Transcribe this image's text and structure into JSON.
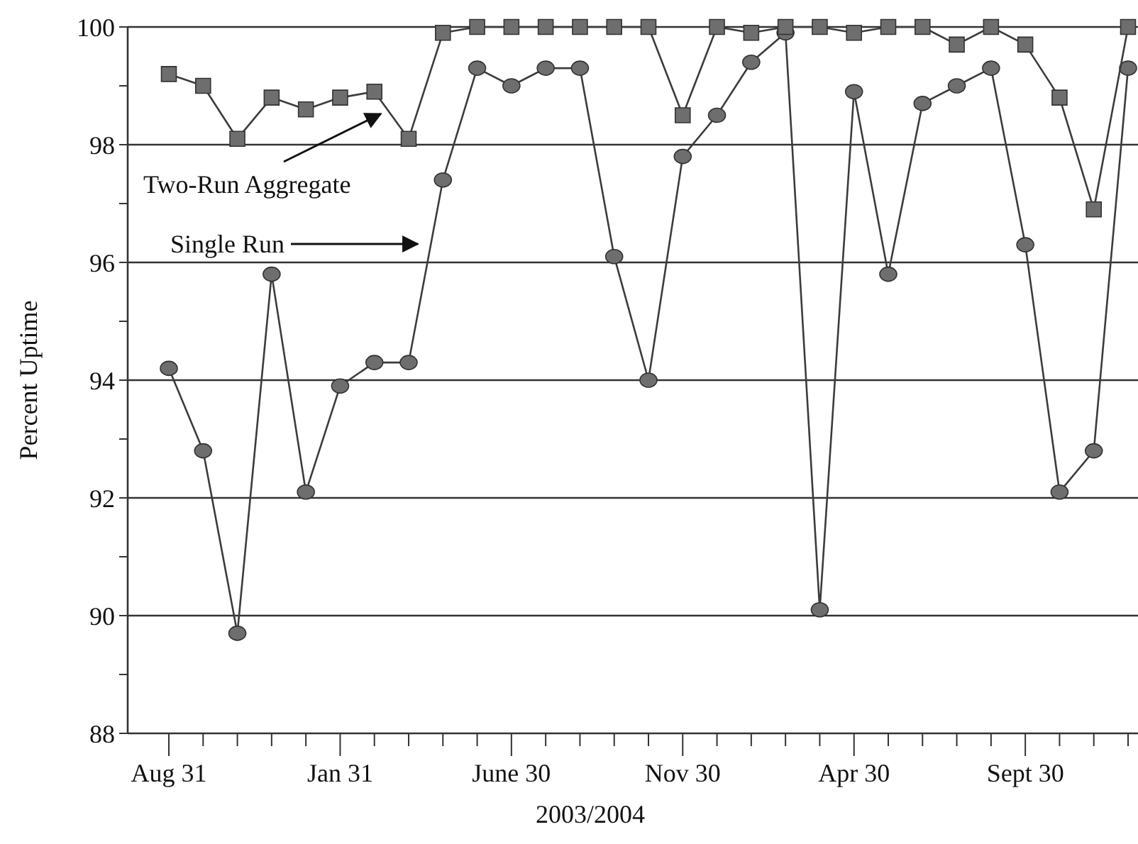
{
  "chart_data": {
    "type": "line",
    "xlabel": "2003/2004",
    "ylabel": "Percent Uptime",
    "categories": [
      "Aug 31",
      null,
      null,
      null,
      null,
      "Jan 31",
      null,
      null,
      null,
      null,
      "June 30",
      null,
      null,
      null,
      null,
      "Nov 30",
      null,
      null,
      null,
      null,
      "Apr 30",
      null,
      null,
      null,
      null,
      "Sept 30",
      null,
      null,
      null
    ],
    "series": [
      {
        "name": "Two-Run Aggregate",
        "color": "#6e6e6e",
        "marker": "square",
        "values": [
          99.2,
          99.0,
          98.1,
          98.8,
          98.6,
          98.8,
          98.9,
          98.1,
          99.9,
          100,
          100,
          100,
          100,
          100,
          100,
          98.5,
          100,
          99.9,
          100,
          100,
          99.9,
          100,
          100,
          99.7,
          100,
          99.7,
          98.8,
          96.9,
          100
        ]
      },
      {
        "name": "Single Run",
        "color": "#6e6e6e",
        "marker": "circle",
        "values": [
          94.2,
          92.8,
          89.7,
          95.8,
          92.1,
          93.9,
          94.3,
          94.3,
          97.4,
          99.3,
          99.0,
          99.3,
          99.3,
          96.1,
          94.0,
          97.8,
          98.5,
          99.4,
          99.9,
          90.1,
          98.9,
          95.8,
          98.7,
          99.0,
          99.3,
          96.3,
          92.1,
          92.8,
          99.3
        ]
      }
    ],
    "ylim": [
      88,
      100
    ],
    "yticks": [
      88,
      {
        "value": 89,
        "label": null
      },
      90,
      {
        "value": 91,
        "label": null
      },
      92,
      {
        "value": 93,
        "label": null
      },
      94,
      {
        "value": 95,
        "label": null
      },
      96,
      {
        "value": 97,
        "label": null
      },
      98,
      {
        "value": 99,
        "label": null
      },
      100
    ],
    "grid": "y",
    "legend": false,
    "line_style": "solid"
  }
}
